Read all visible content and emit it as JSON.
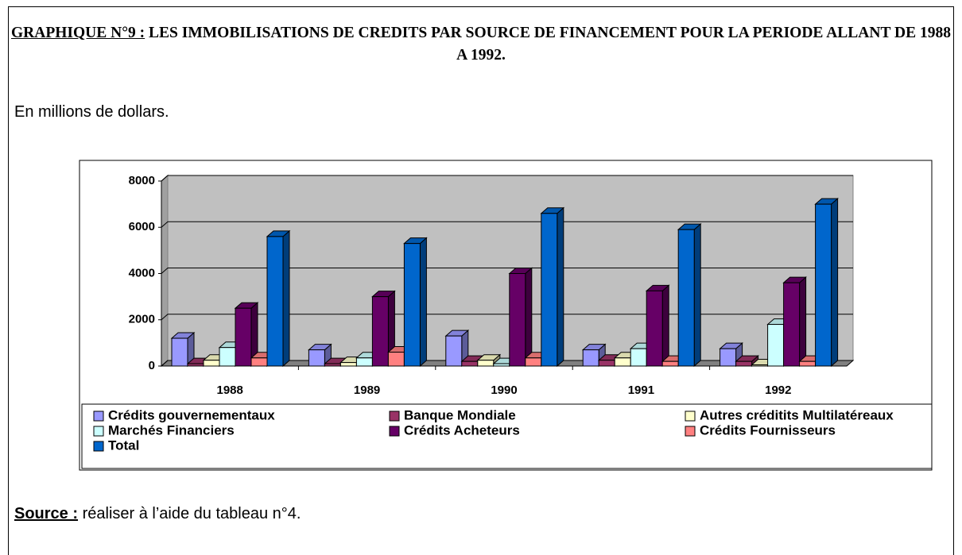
{
  "title_label": "GRAPHIQUE N°9 :",
  "title": "LES IMMOBILISATIONS DE CREDITS PAR SOURCE DE FINANCEMENT POUR LA PERIODE ALLANT DE 1988 A 1992.",
  "subtitle": "En millions de dollars.",
  "source_label": "Source :",
  "source": "réaliser à l’aide du tableau n°4.",
  "chart_data": {
    "type": "bar3d",
    "categories": [
      "1988",
      "1989",
      "1990",
      "1991",
      "1992"
    ],
    "series": [
      {
        "name": "Crédits gouvernementaux",
        "color": "#9999ff",
        "values": [
          1200,
          700,
          1300,
          700,
          750
        ]
      },
      {
        "name": "Banque Mondiale",
        "color": "#993366",
        "values": [
          100,
          100,
          200,
          250,
          200
        ]
      },
      {
        "name": "Autres créditits Multilatéreaux",
        "color": "#ffffcc",
        "values": [
          250,
          150,
          250,
          350,
          50
        ]
      },
      {
        "name": "Marchés Financiers",
        "color": "#ccffff",
        "values": [
          800,
          350,
          100,
          750,
          1800
        ]
      },
      {
        "name": "Crédits Acheteurs",
        "color": "#660066",
        "values": [
          2500,
          3000,
          4000,
          3250,
          3600
        ]
      },
      {
        "name": "Crédits Fournisseurs",
        "color": "#ff8080",
        "values": [
          350,
          600,
          350,
          200,
          200
        ]
      },
      {
        "name": "Total",
        "color": "#0066cc",
        "values": [
          5600,
          5300,
          6600,
          5900,
          7000
        ]
      }
    ],
    "ylim": [
      0,
      8000
    ],
    "yticks": [
      0,
      2000,
      4000,
      6000,
      8000
    ],
    "grid": true
  }
}
